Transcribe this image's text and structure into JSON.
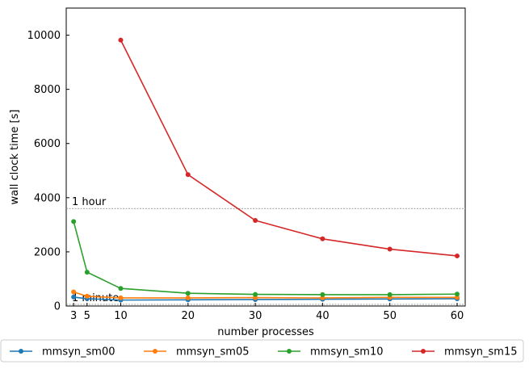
{
  "chart_data": {
    "type": "line",
    "title": "",
    "xlabel": "number processes",
    "ylabel": "wall clock time [s]",
    "xlim": [
      1.9,
      61.2
    ],
    "ylim": [
      0,
      11000
    ],
    "xticks": [
      3,
      5,
      10,
      20,
      30,
      40,
      50,
      60
    ],
    "yticks": [
      0,
      2000,
      4000,
      6000,
      8000,
      10000
    ],
    "grid": false,
    "legend_placement": "below plot, single row",
    "reference_lines": [
      {
        "label": "1 hour",
        "y": 3600,
        "color": "#808080"
      },
      {
        "label": "1 minute",
        "y": 60,
        "color": "#808080"
      }
    ],
    "series": [
      {
        "name": "mmsyn_sm00",
        "color": "#1f77b4",
        "x": [
          3,
          5,
          10,
          20,
          30,
          40,
          50,
          60
        ],
        "values": [
          330,
          270,
          220,
          230,
          240,
          250,
          260,
          270
        ]
      },
      {
        "name": "mmsyn_sm05",
        "color": "#ff7f0e",
        "x": [
          3,
          5,
          10,
          20,
          30,
          40,
          50,
          60
        ],
        "values": [
          520,
          360,
          300,
          300,
          310,
          300,
          320,
          320
        ]
      },
      {
        "name": "mmsyn_sm10",
        "color": "#2ca02c",
        "x": [
          3,
          5,
          10,
          20,
          30,
          40,
          50,
          60
        ],
        "values": [
          3120,
          1250,
          650,
          470,
          430,
          420,
          420,
          440
        ]
      },
      {
        "name": "mmsyn_sm15",
        "color": "#d62728",
        "x": [
          10,
          20,
          30,
          40,
          50,
          60
        ],
        "values": [
          9820,
          4850,
          3160,
          2480,
          2100,
          1850
        ]
      }
    ]
  }
}
